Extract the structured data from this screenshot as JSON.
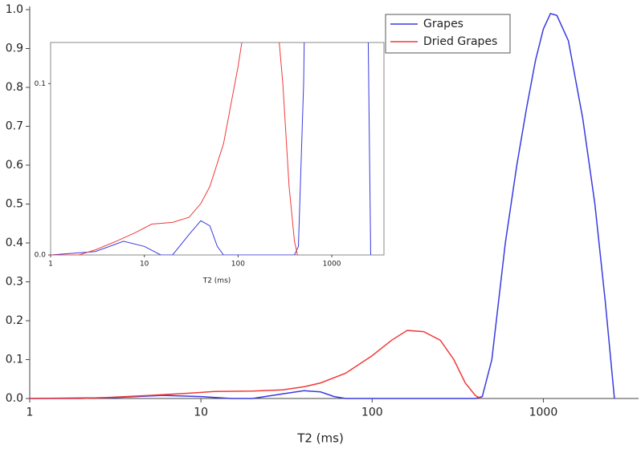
{
  "chart_data": [
    {
      "type": "line",
      "xlabel": "T2 (ms)",
      "xscale": "log",
      "xlim": [
        1,
        3600
      ],
      "ylim": [
        0,
        1.0
      ],
      "xticks": [
        1,
        10,
        100,
        1000
      ],
      "yticks": [
        {
          "value": 0,
          "label": "0.0"
        },
        0.1,
        0.2,
        0.3,
        0.4,
        0.5,
        0.6,
        0.7,
        0.8,
        0.9,
        {
          "value": 1,
          "label": "1.0"
        }
      ],
      "legend": "top-right",
      "series": [
        {
          "name": "Grapes",
          "color": "#3a3ae0",
          "x": [
            1,
            3,
            6,
            10,
            15,
            20,
            30,
            40,
            50,
            60,
            70,
            400,
            440,
            500,
            600,
            700,
            800,
            900,
            1000,
            1100,
            1200,
            1400,
            1700,
            2000,
            2300,
            2600
          ],
          "values": [
            0,
            0.002,
            0.008,
            0.005,
            0,
            0,
            0.012,
            0.02,
            0.017,
            0.005,
            0,
            0,
            0.005,
            0.1,
            0.4,
            0.6,
            0.75,
            0.87,
            0.95,
            0.99,
            0.985,
            0.92,
            0.72,
            0.5,
            0.25,
            0
          ]
        },
        {
          "name": "Dried Grapes",
          "color": "#f03a3a",
          "x": [
            1,
            2,
            3,
            5,
            8,
            12,
            20,
            30,
            40,
            50,
            70,
            100,
            130,
            160,
            200,
            250,
            300,
            350,
            400,
            430
          ],
          "values": [
            0,
            0,
            0.003,
            0.008,
            0.013,
            0.018,
            0.019,
            0.022,
            0.03,
            0.04,
            0.065,
            0.11,
            0.15,
            0.175,
            0.172,
            0.15,
            0.1,
            0.04,
            0.008,
            0
          ]
        }
      ]
    },
    {
      "type": "inset",
      "xlabel": "T2 (ms)",
      "xscale": "log",
      "xlim": [
        1,
        3600
      ],
      "ylim": [
        0,
        0.124
      ],
      "xticks": [
        1,
        10,
        100,
        1000
      ],
      "yticks": [
        {
          "value": 0,
          "label": "0.0"
        },
        0.1
      ]
    }
  ]
}
